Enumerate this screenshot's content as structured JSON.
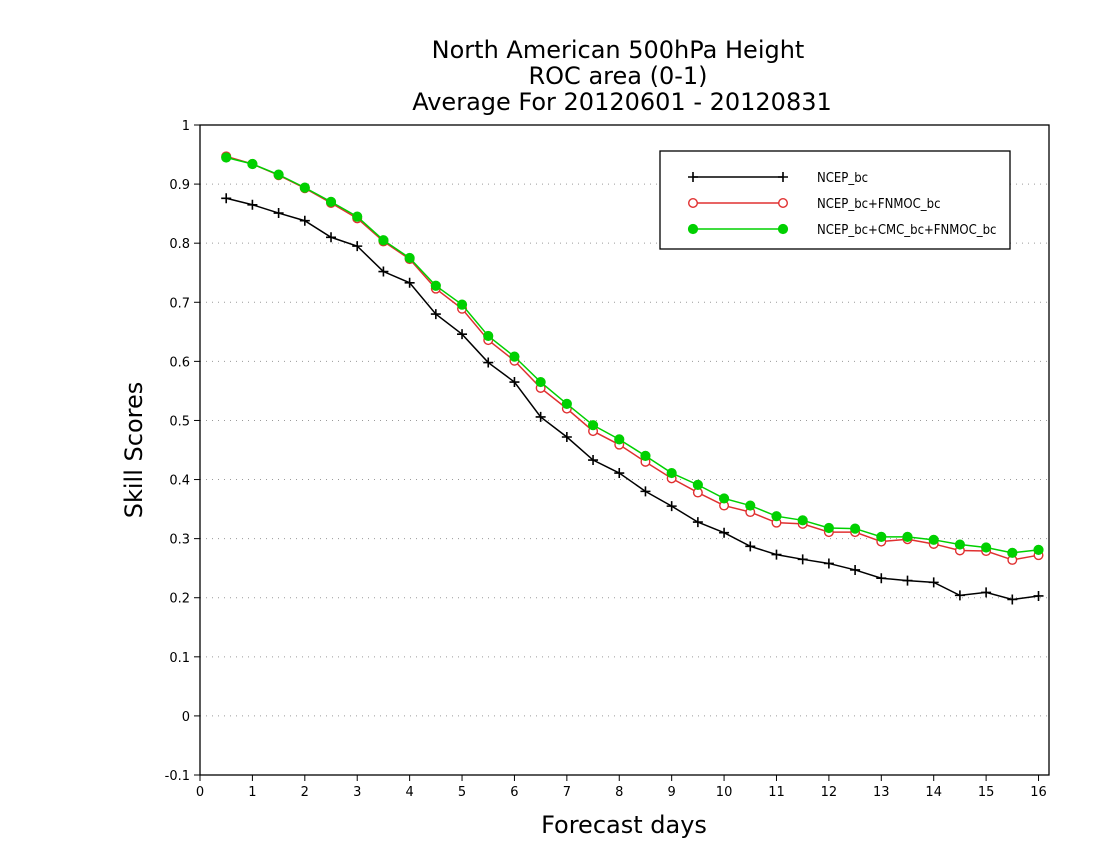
{
  "chart_data": {
    "type": "line",
    "title": [
      "North American 500hPa Height",
      "ROC area (0-1)",
      "Average For 20120601 - 20120831"
    ],
    "xlabel": "Forecast days",
    "ylabel": "Skill Scores",
    "xlim": [
      0,
      16.2
    ],
    "ylim": [
      -0.1,
      1
    ],
    "xticks": [
      0,
      1,
      2,
      3,
      4,
      5,
      6,
      7,
      8,
      9,
      10,
      11,
      12,
      13,
      14,
      15,
      16
    ],
    "yticks": [
      -0.1,
      0,
      0.1,
      0.2,
      0.3,
      0.4,
      0.5,
      0.6,
      0.7,
      0.8,
      0.9,
      1
    ],
    "grid": "horizontal dotted",
    "legend_position": "top-right",
    "x": [
      0.5,
      1,
      1.5,
      2,
      2.5,
      3,
      3.5,
      4,
      4.5,
      5,
      5.5,
      6,
      6.5,
      7,
      7.5,
      8,
      8.5,
      9,
      9.5,
      10,
      10.5,
      11,
      11.5,
      12,
      12.5,
      13,
      13.5,
      14,
      14.5,
      15,
      15.5,
      16
    ],
    "series": [
      {
        "name": "NCEP_bc",
        "color": "#000000",
        "marker": "plus",
        "values": [
          0.876,
          0.865,
          0.851,
          0.838,
          0.81,
          0.795,
          0.752,
          0.733,
          0.68,
          0.646,
          0.598,
          0.565,
          0.506,
          0.472,
          0.433,
          0.411,
          0.38,
          0.355,
          0.328,
          0.31,
          0.287,
          0.273,
          0.265,
          0.258,
          0.247,
          0.233,
          0.229,
          0.226,
          0.204,
          0.209,
          0.197,
          0.203
        ]
      },
      {
        "name": "NCEP_bc+FNMOC_bc",
        "color": "#e03030",
        "marker": "open-circle",
        "values": [
          0.947,
          0.934,
          0.915,
          0.893,
          0.868,
          0.842,
          0.803,
          0.773,
          0.723,
          0.689,
          0.636,
          0.601,
          0.555,
          0.52,
          0.482,
          0.459,
          0.43,
          0.402,
          0.378,
          0.356,
          0.345,
          0.327,
          0.325,
          0.311,
          0.311,
          0.295,
          0.299,
          0.291,
          0.28,
          0.279,
          0.264,
          0.272
        ]
      },
      {
        "name": "NCEP_bc+CMC_bc+FNMOC_bc",
        "color": "#00d000",
        "marker": "filled-circle",
        "values": [
          0.945,
          0.934,
          0.916,
          0.894,
          0.87,
          0.845,
          0.805,
          0.775,
          0.728,
          0.696,
          0.643,
          0.608,
          0.565,
          0.528,
          0.492,
          0.468,
          0.44,
          0.411,
          0.391,
          0.368,
          0.356,
          0.338,
          0.331,
          0.318,
          0.317,
          0.303,
          0.303,
          0.298,
          0.29,
          0.285,
          0.276,
          0.281
        ]
      }
    ]
  }
}
